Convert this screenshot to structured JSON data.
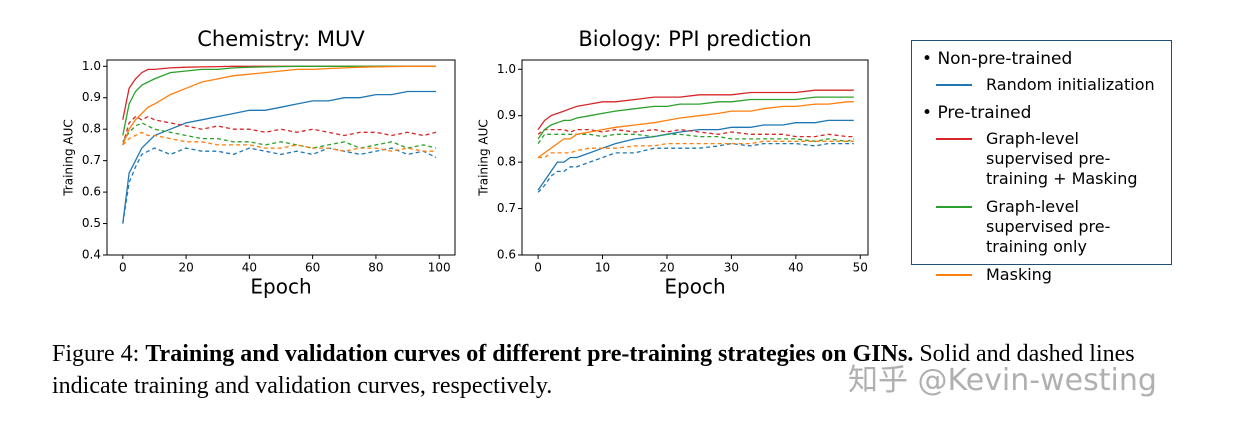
{
  "chart_data": [
    {
      "type": "line",
      "title": "Chemistry: MUV",
      "x_label": "Epoch",
      "y_label": "Training AUC",
      "x": [
        0,
        2,
        4,
        6,
        8,
        10,
        15,
        20,
        25,
        30,
        35,
        40,
        45,
        50,
        55,
        60,
        65,
        70,
        75,
        80,
        85,
        90,
        95,
        99
      ],
      "xlim": [
        -5,
        105
      ],
      "xticks": [
        0,
        20,
        40,
        60,
        80,
        100
      ],
      "ylim": [
        0.4,
        1.02
      ],
      "yticks": [
        0.4,
        0.5,
        0.6,
        0.7,
        0.8,
        0.9,
        {
          "value": 1,
          "label": "1.0"
        }
      ],
      "series": [
        {
          "name": "Random initialization",
          "color": "#1f77b4",
          "train": [
            0.5,
            0.66,
            0.7,
            0.74,
            0.76,
            0.78,
            0.8,
            0.82,
            0.83,
            0.84,
            0.85,
            0.86,
            0.86,
            0.87,
            0.88,
            0.89,
            0.89,
            0.9,
            0.9,
            0.91,
            0.91,
            0.92,
            0.92,
            0.92
          ],
          "validation": [
            0.5,
            0.63,
            0.68,
            0.72,
            0.73,
            0.74,
            0.72,
            0.74,
            0.73,
            0.73,
            0.72,
            0.74,
            0.73,
            0.72,
            0.73,
            0.72,
            0.74,
            0.73,
            0.72,
            0.73,
            0.74,
            0.72,
            0.73,
            0.71
          ]
        },
        {
          "name": "Graph-level supervised pre-training + Masking",
          "color": "#d62728",
          "train": [
            0.83,
            0.93,
            0.96,
            0.98,
            0.99,
            0.99,
            0.995,
            0.997,
            0.998,
            0.999,
            1,
            1,
            1,
            1,
            1,
            1,
            1,
            1,
            1,
            1,
            1,
            1,
            1,
            1
          ],
          "validation": [
            0.75,
            0.82,
            0.84,
            0.83,
            0.84,
            0.83,
            0.82,
            0.81,
            0.8,
            0.81,
            0.8,
            0.8,
            0.79,
            0.8,
            0.79,
            0.8,
            0.79,
            0.78,
            0.79,
            0.79,
            0.78,
            0.79,
            0.78,
            0.79
          ]
        },
        {
          "name": "Graph-level supervised pre-training only",
          "color": "#2ca02c",
          "train": [
            0.78,
            0.88,
            0.92,
            0.94,
            0.95,
            0.96,
            0.98,
            0.985,
            0.99,
            0.99,
            0.995,
            0.997,
            0.998,
            0.999,
            1,
            1,
            1,
            1,
            1,
            1,
            1,
            1,
            1,
            1
          ],
          "validation": [
            0.76,
            0.79,
            0.81,
            0.82,
            0.81,
            0.8,
            0.79,
            0.78,
            0.77,
            0.77,
            0.76,
            0.76,
            0.75,
            0.76,
            0.75,
            0.74,
            0.75,
            0.76,
            0.74,
            0.75,
            0.76,
            0.74,
            0.75,
            0.74
          ]
        },
        {
          "name": "Masking",
          "color": "#ff7f0e",
          "train": [
            0.75,
            0.8,
            0.83,
            0.85,
            0.87,
            0.88,
            0.91,
            0.93,
            0.95,
            0.96,
            0.97,
            0.975,
            0.98,
            0.985,
            0.99,
            0.99,
            0.993,
            0.995,
            0.997,
            0.998,
            0.999,
            1,
            1,
            1
          ],
          "validation": [
            0.75,
            0.77,
            0.78,
            0.79,
            0.78,
            0.78,
            0.77,
            0.76,
            0.76,
            0.75,
            0.75,
            0.75,
            0.74,
            0.74,
            0.75,
            0.74,
            0.74,
            0.73,
            0.74,
            0.74,
            0.73,
            0.74,
            0.73,
            0.73
          ]
        }
      ]
    },
    {
      "type": "line",
      "title": "Biology: PPI prediction",
      "x_label": "Epoch",
      "y_label": "Training AUC",
      "x": [
        0,
        1,
        2,
        3,
        4,
        5,
        6,
        8,
        10,
        12,
        15,
        18,
        20,
        22,
        25,
        28,
        30,
        33,
        35,
        38,
        40,
        43,
        45,
        48,
        49
      ],
      "xlim": [
        -2.5,
        51.2
      ],
      "xticks": [
        0,
        10,
        20,
        30,
        40,
        50
      ],
      "ylim": [
        0.6,
        1.02
      ],
      "yticks": [
        0.6,
        0.7,
        0.8,
        0.9,
        {
          "value": 1,
          "label": "1.0"
        }
      ],
      "series": [
        {
          "color": "#1f77b4",
          "train": [
            0.74,
            0.76,
            0.78,
            0.8,
            0.8,
            0.81,
            0.81,
            0.82,
            0.83,
            0.84,
            0.85,
            0.855,
            0.86,
            0.865,
            0.87,
            0.87,
            0.875,
            0.875,
            0.88,
            0.88,
            0.885,
            0.885,
            0.89,
            0.89,
            0.89
          ],
          "validation": [
            0.735,
            0.75,
            0.77,
            0.78,
            0.78,
            0.79,
            0.79,
            0.8,
            0.81,
            0.82,
            0.82,
            0.83,
            0.83,
            0.83,
            0.83,
            0.835,
            0.84,
            0.835,
            0.84,
            0.84,
            0.84,
            0.835,
            0.84,
            0.84,
            0.84
          ]
        },
        {
          "color": "#d62728",
          "train": [
            0.87,
            0.89,
            0.9,
            0.905,
            0.91,
            0.915,
            0.92,
            0.925,
            0.93,
            0.93,
            0.935,
            0.94,
            0.94,
            0.94,
            0.945,
            0.945,
            0.945,
            0.95,
            0.95,
            0.95,
            0.95,
            0.955,
            0.955,
            0.955,
            0.955
          ],
          "validation": [
            0.86,
            0.87,
            0.87,
            0.87,
            0.87,
            0.865,
            0.87,
            0.87,
            0.865,
            0.87,
            0.865,
            0.87,
            0.865,
            0.87,
            0.865,
            0.86,
            0.865,
            0.86,
            0.86,
            0.86,
            0.855,
            0.855,
            0.86,
            0.855,
            0.855
          ]
        },
        {
          "color": "#2ca02c",
          "train": [
            0.85,
            0.87,
            0.88,
            0.885,
            0.89,
            0.89,
            0.895,
            0.9,
            0.905,
            0.91,
            0.915,
            0.92,
            0.92,
            0.925,
            0.925,
            0.93,
            0.93,
            0.935,
            0.935,
            0.935,
            0.935,
            0.94,
            0.94,
            0.94,
            0.94
          ],
          "validation": [
            0.84,
            0.86,
            0.86,
            0.86,
            0.86,
            0.86,
            0.86,
            0.86,
            0.855,
            0.86,
            0.86,
            0.855,
            0.86,
            0.86,
            0.855,
            0.855,
            0.85,
            0.85,
            0.85,
            0.85,
            0.85,
            0.845,
            0.85,
            0.845,
            0.85
          ]
        },
        {
          "color": "#ff7f0e",
          "train": [
            0.81,
            0.82,
            0.83,
            0.84,
            0.85,
            0.85,
            0.86,
            0.865,
            0.87,
            0.875,
            0.88,
            0.885,
            0.89,
            0.895,
            0.9,
            0.905,
            0.91,
            0.91,
            0.915,
            0.92,
            0.92,
            0.925,
            0.925,
            0.93,
            0.93
          ],
          "validation": [
            0.81,
            0.81,
            0.82,
            0.82,
            0.82,
            0.82,
            0.825,
            0.83,
            0.83,
            0.83,
            0.835,
            0.835,
            0.84,
            0.84,
            0.84,
            0.84,
            0.84,
            0.84,
            0.845,
            0.845,
            0.845,
            0.845,
            0.845,
            0.845,
            0.845
          ]
        }
      ]
    }
  ],
  "legend": {
    "headings": [
      "Non-pre-trained",
      "Pre-trained"
    ]
  },
  "caption": {
    "label": "Figure 4:",
    "bold": "Training and validation curves of different pre-training strategies on GINs.",
    "text": "Solid and dashed lines indicate training and validation curves, respectively."
  },
  "watermark": "知乎 @Kevin-westing"
}
